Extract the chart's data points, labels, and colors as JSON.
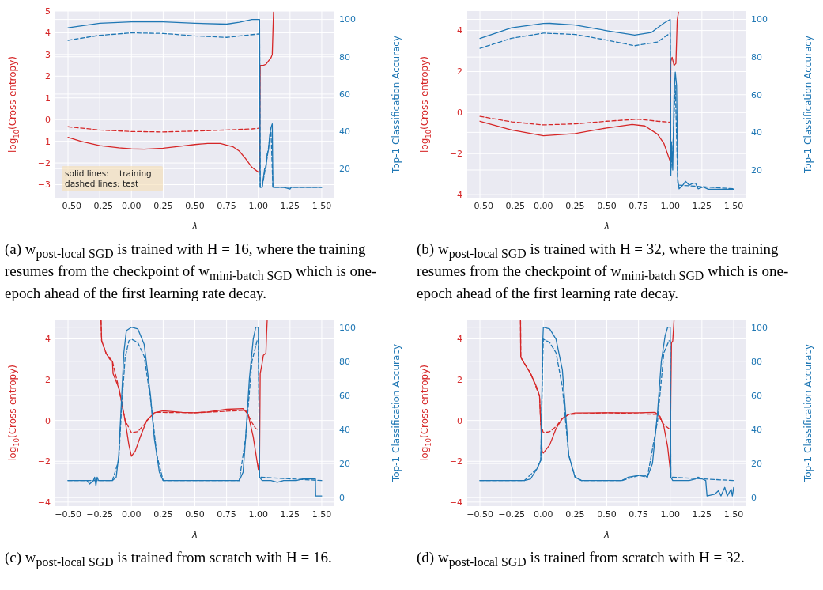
{
  "chart_data": [
    {
      "type": "line",
      "xlabel": "λ",
      "ylabel": "log$_{10}$(Cross-entropy)",
      "y2label": "Top-1 Classification Accuracy",
      "grid": true,
      "xlim": [
        -0.6,
        1.6
      ],
      "xticks": [
        {
          "value": -0.5,
          "label": "−0.50"
        },
        {
          "value": -0.25,
          "label": "−0.25"
        },
        {
          "value": 0,
          "label": "0.00"
        },
        {
          "value": 0.25,
          "label": "0.25"
        },
        {
          "value": 0.5,
          "label": "0.50"
        },
        {
          "value": 0.75,
          "label": "0.75"
        },
        {
          "value": 1,
          "label": "1.00"
        },
        {
          "value": 1.25,
          "label": "1.25"
        },
        {
          "value": 1.5,
          "label": "1.50"
        }
      ],
      "ylim": [
        -3.6,
        5.0
      ],
      "yticks": [
        {
          "value": -3,
          "label": "−3"
        },
        {
          "value": -2,
          "label": "−2"
        },
        {
          "value": -1,
          "label": "−1"
        },
        0,
        1,
        2,
        3,
        4,
        5
      ],
      "y2lim": [
        4.4,
        104.5
      ],
      "y2ticks": [
        20,
        40,
        60,
        80,
        100
      ],
      "series": [
        {
          "color": "#d62728",
          "line_style": "solid",
          "x": [
            -0.5,
            -0.4,
            -0.25,
            -0.1,
            0,
            0.1,
            0.25,
            0.4,
            0.5,
            0.6,
            0.7,
            0.8,
            0.85,
            0.9,
            0.95,
            1.0,
            1.01,
            1.015,
            1.04,
            1.06,
            1.08,
            1.1,
            1.11,
            1.115,
            1.12
          ],
          "values": [
            -0.82,
            -1.0,
            -1.2,
            -1.3,
            -1.35,
            -1.36,
            -1.32,
            -1.22,
            -1.15,
            -1.1,
            -1.1,
            -1.25,
            -1.45,
            -1.8,
            -2.2,
            -2.42,
            -2.35,
            2.5,
            2.5,
            2.55,
            2.7,
            2.85,
            3.0,
            4.0,
            4.95
          ]
        },
        {
          "color": "#d62728",
          "line_style": "dashed",
          "x": [
            -0.5,
            -0.25,
            0,
            0.25,
            0.5,
            0.75,
            0.95,
            1.0,
            1.01
          ],
          "values": [
            -0.33,
            -0.48,
            -0.55,
            -0.57,
            -0.53,
            -0.48,
            -0.43,
            -0.4,
            -0.38
          ]
        },
        {
          "color": "#1f77b4",
          "line_style": "dashed",
          "axis": "y2",
          "x": [
            -0.5,
            -0.25,
            0,
            0.25,
            0.5,
            0.75,
            0.9,
            1.0,
            1.01,
            1.015,
            1.03,
            1.05,
            1.07,
            1.09,
            1.1,
            1.115,
            1.2,
            1.5
          ],
          "values": [
            88.8,
            91.5,
            92.8,
            92.5,
            91.2,
            90.4,
            91.5,
            92.2,
            92,
            10,
            10,
            18,
            26,
            36,
            40,
            10,
            10,
            10
          ]
        },
        {
          "color": "#1f77b4",
          "line_style": "solid",
          "axis": "y2",
          "x": [
            -0.5,
            -0.25,
            0,
            0.25,
            0.5,
            0.75,
            0.85,
            0.95,
            1.01,
            1.015,
            1.03,
            1.04,
            1.05,
            1.06,
            1.07,
            1.08,
            1.09,
            1.1,
            1.11,
            1.115,
            1.2,
            1.25,
            1.26,
            1.3,
            1.5
          ],
          "values": [
            95.5,
            98,
            98.7,
            98.7,
            98,
            97.5,
            98.5,
            100,
            100,
            10,
            10,
            15,
            20,
            20,
            28,
            30,
            38,
            42,
            44,
            10,
            10,
            9,
            10,
            10,
            10
          ]
        }
      ],
      "annotations": [
        "solid lines:    training",
        "dashed lines: test",
        "(a) w$_{post-local SGD}$ is trained with H = 16, where the training resumes from the checkpoint of w$_{mini-batch SGD}$ which is one-epoch ahead of the first learning rate decay."
      ]
    },
    {
      "type": "line",
      "xlabel": "λ",
      "ylabel": "log$_{10}$(Cross-entropy)",
      "y2label": "Top-1 Classification Accuracy",
      "grid": true,
      "xlim": [
        -0.6,
        1.6
      ],
      "xticks": [
        {
          "value": -0.5,
          "label": "−0.50"
        },
        {
          "value": -0.25,
          "label": "−0.25"
        },
        {
          "value": 0,
          "label": "0.00"
        },
        {
          "value": 0.25,
          "label": "0.25"
        },
        {
          "value": 0.5,
          "label": "0.50"
        },
        {
          "value": 0.75,
          "label": "0.75"
        },
        {
          "value": 1,
          "label": "1.00"
        },
        {
          "value": 1.25,
          "label": "1.25"
        },
        {
          "value": 1.5,
          "label": "1.50"
        }
      ],
      "ylim": [
        -4.15,
        4.95
      ],
      "yticks": [
        {
          "value": -4,
          "label": "−4"
        },
        {
          "value": -2,
          "label": "−2"
        },
        0,
        2,
        4
      ],
      "y2lim": [
        5.3,
        104.4
      ],
      "y2ticks": [
        20,
        40,
        60,
        80,
        100
      ],
      "series": [
        {
          "color": "#d62728",
          "line_style": "solid",
          "x": [
            -0.5,
            -0.25,
            0,
            0.25,
            0.5,
            0.7,
            0.8,
            0.9,
            0.95,
            1.0,
            1.005,
            1.015,
            1.03,
            1.045,
            1.055,
            1.065
          ],
          "values": [
            -0.42,
            -0.85,
            -1.13,
            -1.02,
            -0.75,
            -0.58,
            -0.65,
            -1.05,
            -1.5,
            -2.38,
            2.5,
            2.7,
            2.3,
            2.4,
            4.5,
            4.9
          ]
        },
        {
          "color": "#d62728",
          "line_style": "dashed",
          "x": [
            -0.5,
            -0.25,
            0,
            0.25,
            0.5,
            0.75,
            0.9,
            1.0
          ],
          "values": [
            -0.18,
            -0.45,
            -0.6,
            -0.55,
            -0.42,
            -0.32,
            -0.42,
            -0.47
          ]
        },
        {
          "color": "#1f77b4",
          "line_style": "dashed",
          "axis": "y2",
          "x": [
            -0.5,
            -0.25,
            0,
            0.25,
            0.5,
            0.72,
            0.9,
            1.0,
            1.005,
            1.02,
            1.04,
            1.06,
            1.5
          ],
          "values": [
            84.6,
            90,
            92.7,
            92,
            89,
            86,
            88,
            92.7,
            20,
            30,
            65,
            12,
            10
          ]
        },
        {
          "color": "#1f77b4",
          "line_style": "solid",
          "axis": "y2",
          "x": [
            -0.5,
            -0.25,
            0,
            0.05,
            0.25,
            0.5,
            0.72,
            0.85,
            0.95,
            1.0,
            1.005,
            1.01,
            1.02,
            1.03,
            1.04,
            1.05,
            1.06,
            1.07,
            1.1,
            1.12,
            1.15,
            1.18,
            1.2,
            1.22,
            1.26,
            1.3,
            1.5
          ],
          "values": [
            89.9,
            95.5,
            97.8,
            97.9,
            97,
            94,
            91.6,
            93,
            98,
            100,
            17,
            35,
            20,
            60,
            72,
            65,
            15,
            10,
            12,
            14,
            12,
            13,
            13,
            10,
            11,
            9.8,
            9.8
          ]
        }
      ],
      "annotations": [
        "(b) w$_{post-local SGD}$ is trained with H = 32, where the training resumes from the checkpoint of w$_{mini-batch SGD}$ which is one-epoch ahead of the first learning rate decay."
      ]
    },
    {
      "type": "line",
      "xlabel": "λ",
      "ylabel": "log$_{10}$(Cross-entropy)",
      "y2label": "Top-1 Classification Accuracy",
      "grid": true,
      "xlim": [
        -0.6,
        1.6
      ],
      "xticks": [
        {
          "value": -0.5,
          "label": "−0.50"
        },
        {
          "value": -0.25,
          "label": "−0.25"
        },
        {
          "value": 0,
          "label": "0.00"
        },
        {
          "value": 0.25,
          "label": "0.25"
        },
        {
          "value": 0.5,
          "label": "0.50"
        },
        {
          "value": 0.75,
          "label": "0.75"
        },
        {
          "value": 1,
          "label": "1.00"
        },
        {
          "value": 1.25,
          "label": "1.25"
        },
        {
          "value": 1.5,
          "label": "1.50"
        }
      ],
      "ylim": [
        -4.2,
        4.95
      ],
      "yticks": [
        {
          "value": -4,
          "label": "−4"
        },
        {
          "value": -2,
          "label": "−2"
        },
        0,
        2,
        4
      ],
      "y2lim": [
        -5,
        104.5
      ],
      "y2ticks": [
        0,
        20,
        40,
        60,
        80,
        100
      ],
      "series": [
        {
          "color": "#d62728",
          "line_style": "solid",
          "x": [
            -0.24,
            -0.235,
            -0.2,
            -0.17,
            -0.15,
            -0.145,
            -0.1,
            -0.08,
            -0.05,
            -0.02,
            0,
            0.03,
            0.07,
            0.12,
            0.18,
            0.25,
            0.4,
            0.5,
            0.6,
            0.75,
            0.88,
            0.92,
            0.96,
            0.99,
            1.0,
            1.01,
            1.015,
            1.03,
            1.04,
            1.06,
            1.065,
            1.07
          ],
          "values": [
            4.9,
            3.9,
            3.3,
            3.0,
            2.9,
            2.3,
            1.6,
            1.0,
            0,
            -1.2,
            -1.75,
            -1.5,
            -0.8,
            0,
            0.38,
            0.48,
            0.4,
            0.38,
            0.42,
            0.55,
            0.58,
            0.3,
            -0.8,
            -2.0,
            -2.4,
            -1.8,
            2.3,
            2.8,
            3.2,
            3.3,
            4.2,
            4.9
          ]
        },
        {
          "color": "#d62728",
          "line_style": "dashed",
          "x": [
            -0.24,
            -0.235,
            -0.2,
            -0.15,
            -0.1,
            -0.05,
            0,
            0.05,
            0.1,
            0.15,
            0.2,
            0.5,
            0.9,
            0.95,
            0.98,
            1.0
          ],
          "values": [
            4.9,
            3.9,
            3.3,
            2.9,
            1.6,
            0,
            -0.6,
            -0.55,
            -0.2,
            0.2,
            0.4,
            0.38,
            0.5,
            -0.1,
            -0.4,
            -0.45
          ]
        },
        {
          "color": "#1f77b4",
          "line_style": "dashed",
          "axis": "y2",
          "x": [
            -0.5,
            -0.15,
            -0.1,
            -0.08,
            -0.05,
            -0.02,
            0,
            0.05,
            0.1,
            0.15,
            0.2,
            0.25,
            0.5,
            0.85,
            0.9,
            0.95,
            0.99,
            1.0,
            1.01,
            1.5
          ],
          "values": [
            10,
            10,
            22,
            50,
            82,
            92,
            93,
            91,
            83,
            58,
            25,
            10,
            10,
            10,
            35,
            80,
            92,
            93,
            12,
            10
          ]
        },
        {
          "color": "#1f77b4",
          "line_style": "solid",
          "axis": "y2",
          "x": [
            -0.5,
            -0.35,
            -0.33,
            -0.3,
            -0.29,
            -0.28,
            -0.27,
            -0.26,
            -0.15,
            -0.12,
            -0.1,
            -0.08,
            -0.06,
            -0.04,
            0,
            0.05,
            0.1,
            0.15,
            0.18,
            0.22,
            0.25,
            0.5,
            0.85,
            0.88,
            0.9,
            0.93,
            0.96,
            0.98,
            1.0,
            1.005,
            1.01,
            1.03,
            1.1,
            1.15,
            1.2,
            1.3,
            1.35,
            1.45,
            1.452,
            1.5
          ],
          "values": [
            10,
            10,
            8,
            10,
            12,
            7,
            12,
            10,
            10,
            12,
            25,
            55,
            85,
            98,
            100,
            99,
            90,
            60,
            35,
            15,
            10,
            10,
            10,
            15,
            35,
            70,
            93,
            100,
            100,
            60,
            12,
            10,
            10,
            9,
            10,
            10,
            11,
            11,
            1,
            1
          ]
        }
      ],
      "annotations": [
        "(c) w$_{post-local SGD}$ is trained from scratch with H = 16."
      ]
    },
    {
      "type": "line",
      "xlabel": "λ",
      "ylabel": "log$_{10}$(Cross-entropy)",
      "y2label": "Top-1 Classification Accuracy",
      "grid": true,
      "xlim": [
        -0.6,
        1.6
      ],
      "xticks": [
        {
          "value": -0.5,
          "label": "−0.50"
        },
        {
          "value": -0.25,
          "label": "−0.25"
        },
        {
          "value": 0,
          "label": "0.00"
        },
        {
          "value": 0.25,
          "label": "0.25"
        },
        {
          "value": 0.5,
          "label": "0.50"
        },
        {
          "value": 0.75,
          "label": "0.75"
        },
        {
          "value": 1,
          "label": "1.00"
        },
        {
          "value": 1.25,
          "label": "1.25"
        },
        {
          "value": 1.5,
          "label": "1.50"
        }
      ],
      "ylim": [
        -4.2,
        4.95
      ],
      "yticks": [
        {
          "value": -4,
          "label": "−4"
        },
        {
          "value": -2,
          "label": "−2"
        },
        0,
        2,
        4
      ],
      "y2lim": [
        -5,
        104.5
      ],
      "y2ticks": [
        0,
        20,
        40,
        60,
        80,
        100
      ],
      "series": [
        {
          "color": "#d62728",
          "line_style": "solid",
          "x": [
            -0.18,
            -0.178,
            -0.15,
            -0.1,
            -0.05,
            -0.03,
            -0.02,
            -0.01,
            0,
            0.05,
            0.1,
            0.15,
            0.2,
            0.25,
            0.5,
            0.75,
            0.88,
            0.92,
            0.95,
            0.98,
            1.0,
            1.005,
            1.01,
            1.02,
            1.03
          ],
          "values": [
            4.9,
            3.1,
            2.8,
            2.3,
            1.6,
            1.2,
            -0.2,
            -1.5,
            -1.6,
            -1.2,
            -0.4,
            0.1,
            0.3,
            0.37,
            0.38,
            0.38,
            0.4,
            0.2,
            -0.3,
            -1.3,
            -2.4,
            1.1,
            3.8,
            3.9,
            4.9
          ]
        },
        {
          "color": "#d62728",
          "line_style": "dashed",
          "x": [
            -0.18,
            -0.178,
            -0.1,
            -0.03,
            -0.02,
            0,
            0.05,
            0.1,
            0.15,
            0.2,
            0.5,
            0.9,
            0.95,
            1.0
          ],
          "values": [
            4.9,
            3.1,
            2.3,
            1.2,
            -0.2,
            -0.6,
            -0.55,
            -0.3,
            0.1,
            0.3,
            0.38,
            0.3,
            -0.2,
            -0.45
          ]
        },
        {
          "color": "#1f77b4",
          "line_style": "dashed",
          "axis": "y2",
          "x": [
            -0.5,
            -0.15,
            -0.05,
            -0.02,
            -0.005,
            0,
            0.05,
            0.1,
            0.15,
            0.2,
            0.25,
            0.3,
            0.62,
            0.75,
            0.82,
            0.9,
            0.95,
            0.99,
            1.0,
            1.005,
            1.5
          ],
          "values": [
            10,
            10,
            17,
            22,
            80,
            93,
            91,
            85,
            65,
            25,
            12,
            10,
            10,
            13,
            12,
            45,
            85,
            92,
            92,
            12,
            10
          ]
        },
        {
          "color": "#1f77b4",
          "line_style": "solid",
          "axis": "y2",
          "x": [
            -0.5,
            -0.35,
            -0.15,
            -0.1,
            -0.05,
            -0.02,
            -0.005,
            0,
            0.05,
            0.1,
            0.15,
            0.18,
            0.2,
            0.25,
            0.3,
            0.62,
            0.67,
            0.75,
            0.8,
            0.82,
            0.86,
            0.9,
            0.93,
            0.96,
            0.98,
            1.0,
            1.005,
            1.02,
            1.1,
            1.15,
            1.2,
            1.22,
            1.25,
            1.28,
            1.29,
            1.35,
            1.38,
            1.4,
            1.43,
            1.45,
            1.48,
            1.49,
            1.5
          ],
          "values": [
            10,
            10,
            10,
            11,
            17,
            22,
            90,
            100,
            99,
            93,
            75,
            45,
            25,
            12,
            10,
            10,
            12,
            13,
            13,
            12,
            20,
            50,
            80,
            95,
            100,
            100,
            12,
            10,
            10,
            10,
            11,
            12,
            11,
            10,
            1,
            2,
            4,
            1,
            6,
            1,
            5,
            1,
            6
          ]
        }
      ],
      "annotations": [
        "(d) w$_{post-local SGD}$ is trained from scratch with H = 32."
      ]
    }
  ]
}
